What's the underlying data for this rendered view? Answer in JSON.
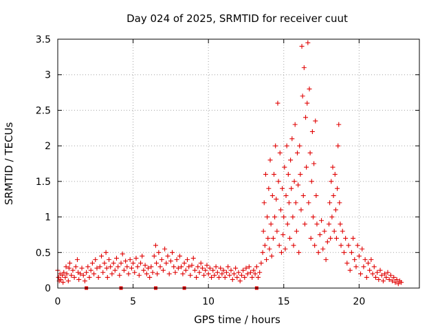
{
  "chart_data": {
    "type": "scatter",
    "title": "Day 024 of 2025, SRMTID for receiver cuut",
    "xlabel": "GPS time / hours",
    "ylabel": "SRMTID / TECUs",
    "xlim": [
      0,
      24
    ],
    "ylim": [
      0,
      3.5
    ],
    "xticks": [
      0,
      5,
      10,
      15,
      20
    ],
    "xtick_labels": [
      "0",
      "5",
      "10",
      "15",
      "20"
    ],
    "yticks": [
      0,
      0.5,
      1,
      1.5,
      2,
      2.5,
      3,
      3.5
    ],
    "ytick_labels": [
      "0",
      "0.5",
      "1",
      "1.5",
      "2",
      "2.5",
      "3",
      "3.5"
    ],
    "grid": true,
    "marker": "+",
    "color": "#e00000",
    "series": [
      {
        "name": "SRMTID",
        "points": [
          [
            0.0,
            0.25
          ],
          [
            0.05,
            0.15
          ],
          [
            0.1,
            0.1
          ],
          [
            0.15,
            0.2
          ],
          [
            0.2,
            0.12
          ],
          [
            0.3,
            0.18
          ],
          [
            0.35,
            0.08
          ],
          [
            0.4,
            0.22
          ],
          [
            0.5,
            0.15
          ],
          [
            0.55,
            0.3
          ],
          [
            0.6,
            0.2
          ],
          [
            0.7,
            0.1
          ],
          [
            0.75,
            0.28
          ],
          [
            0.8,
            0.35
          ],
          [
            0.9,
            0.18
          ],
          [
            1.0,
            0.25
          ],
          [
            1.1,
            0.15
          ],
          [
            1.2,
            0.3
          ],
          [
            1.3,
            0.4
          ],
          [
            1.35,
            0.22
          ],
          [
            1.4,
            0.12
          ],
          [
            1.5,
            0.2
          ],
          [
            1.6,
            0.28
          ],
          [
            1.7,
            0.18
          ],
          [
            1.8,
            0.1
          ],
          [
            1.9,
            0.22
          ],
          [
            2.0,
            0.3
          ],
          [
            2.1,
            0.15
          ],
          [
            2.2,
            0.25
          ],
          [
            2.3,
            0.35
          ],
          [
            2.4,
            0.2
          ],
          [
            2.5,
            0.4
          ],
          [
            2.6,
            0.28
          ],
          [
            2.7,
            0.15
          ],
          [
            2.8,
            0.3
          ],
          [
            2.9,
            0.45
          ],
          [
            3.0,
            0.22
          ],
          [
            3.1,
            0.35
          ],
          [
            3.2,
            0.5
          ],
          [
            3.25,
            0.28
          ],
          [
            3.3,
            0.15
          ],
          [
            3.4,
            0.4
          ],
          [
            3.5,
            0.3
          ],
          [
            3.6,
            0.2
          ],
          [
            3.7,
            0.35
          ],
          [
            3.8,
            0.25
          ],
          [
            3.9,
            0.42
          ],
          [
            4.0,
            0.3
          ],
          [
            4.1,
            0.18
          ],
          [
            4.2,
            0.35
          ],
          [
            4.3,
            0.48
          ],
          [
            4.4,
            0.25
          ],
          [
            4.5,
            0.38
          ],
          [
            4.6,
            0.3
          ],
          [
            4.7,
            0.2
          ],
          [
            4.8,
            0.4
          ],
          [
            4.9,
            0.28
          ],
          [
            5.0,
            0.35
          ],
          [
            5.1,
            0.22
          ],
          [
            5.2,
            0.42
          ],
          [
            5.3,
            0.3
          ],
          [
            5.4,
            0.18
          ],
          [
            5.5,
            0.35
          ],
          [
            5.6,
            0.45
          ],
          [
            5.7,
            0.25
          ],
          [
            5.8,
            0.32
          ],
          [
            5.9,
            0.2
          ],
          [
            6.0,
            0.28
          ],
          [
            6.1,
            0.15
          ],
          [
            6.2,
            0.3
          ],
          [
            6.3,
            0.22
          ],
          [
            6.4,
            0.45
          ],
          [
            6.5,
            0.6
          ],
          [
            6.55,
            0.35
          ],
          [
            6.6,
            0.2
          ],
          [
            6.7,
            0.5
          ],
          [
            6.8,
            0.3
          ],
          [
            6.9,
            0.4
          ],
          [
            7.0,
            0.25
          ],
          [
            7.1,
            0.55
          ],
          [
            7.2,
            0.35
          ],
          [
            7.3,
            0.45
          ],
          [
            7.4,
            0.2
          ],
          [
            7.5,
            0.38
          ],
          [
            7.6,
            0.5
          ],
          [
            7.7,
            0.3
          ],
          [
            7.8,
            0.22
          ],
          [
            7.9,
            0.4
          ],
          [
            8.0,
            0.28
          ],
          [
            8.1,
            0.45
          ],
          [
            8.2,
            0.3
          ],
          [
            8.3,
            0.2
          ],
          [
            8.4,
            0.35
          ],
          [
            8.5,
            0.25
          ],
          [
            8.6,
            0.4
          ],
          [
            8.7,
            0.3
          ],
          [
            8.8,
            0.18
          ],
          [
            8.9,
            0.32
          ],
          [
            9.0,
            0.42
          ],
          [
            9.1,
            0.25
          ],
          [
            9.2,
            0.15
          ],
          [
            9.3,
            0.3
          ],
          [
            9.4,
            0.22
          ],
          [
            9.5,
            0.35
          ],
          [
            9.6,
            0.28
          ],
          [
            9.7,
            0.18
          ],
          [
            9.8,
            0.25
          ],
          [
            9.9,
            0.32
          ],
          [
            10.0,
            0.2
          ],
          [
            10.1,
            0.28
          ],
          [
            10.2,
            0.15
          ],
          [
            10.3,
            0.25
          ],
          [
            10.4,
            0.18
          ],
          [
            10.5,
            0.3
          ],
          [
            10.6,
            0.22
          ],
          [
            10.7,
            0.15
          ],
          [
            10.8,
            0.28
          ],
          [
            10.9,
            0.2
          ],
          [
            11.0,
            0.25
          ],
          [
            11.1,
            0.15
          ],
          [
            11.2,
            0.22
          ],
          [
            11.3,
            0.3
          ],
          [
            11.4,
            0.18
          ],
          [
            11.5,
            0.25
          ],
          [
            11.6,
            0.12
          ],
          [
            11.7,
            0.2
          ],
          [
            11.8,
            0.28
          ],
          [
            11.9,
            0.15
          ],
          [
            12.0,
            0.22
          ],
          [
            12.1,
            0.1
          ],
          [
            12.2,
            0.18
          ],
          [
            12.3,
            0.25
          ],
          [
            12.4,
            0.15
          ],
          [
            12.5,
            0.28
          ],
          [
            12.6,
            0.2
          ],
          [
            12.7,
            0.3
          ],
          [
            12.8,
            0.22
          ],
          [
            12.9,
            0.15
          ],
          [
            13.0,
            0.25
          ],
          [
            13.1,
            0.2
          ],
          [
            13.2,
            0.3
          ],
          [
            13.3,
            0.15
          ],
          [
            13.4,
            0.22
          ],
          [
            13.5,
            0.35
          ],
          [
            13.6,
            0.5
          ],
          [
            13.65,
            0.8
          ],
          [
            13.7,
            1.2
          ],
          [
            13.75,
            0.6
          ],
          [
            13.8,
            1.6
          ],
          [
            13.85,
            0.4
          ],
          [
            13.9,
            1.0
          ],
          [
            13.95,
            0.7
          ],
          [
            14.0,
            1.4
          ],
          [
            14.05,
            0.55
          ],
          [
            14.1,
            1.8
          ],
          [
            14.15,
            0.9
          ],
          [
            14.2,
            0.45
          ],
          [
            14.25,
            1.3
          ],
          [
            14.3,
            0.7
          ],
          [
            14.35,
            1.6
          ],
          [
            14.4,
            1.0
          ],
          [
            14.45,
            2.0
          ],
          [
            14.5,
            1.25
          ],
          [
            14.55,
            0.8
          ],
          [
            14.6,
            2.6
          ],
          [
            14.65,
            1.5
          ],
          [
            14.7,
            0.6
          ],
          [
            14.75,
            1.9
          ],
          [
            14.8,
            1.1
          ],
          [
            14.85,
            0.5
          ],
          [
            14.9,
            1.4
          ],
          [
            14.95,
            0.75
          ],
          [
            15.0,
            1.0
          ],
          [
            15.05,
            1.7
          ],
          [
            15.1,
            0.55
          ],
          [
            15.15,
            1.3
          ],
          [
            15.2,
            2.0
          ],
          [
            15.25,
            0.9
          ],
          [
            15.3,
            1.6
          ],
          [
            15.35,
            1.2
          ],
          [
            15.4,
            0.7
          ],
          [
            15.45,
            1.8
          ],
          [
            15.5,
            1.4
          ],
          [
            15.55,
            2.1
          ],
          [
            15.6,
            1.0
          ],
          [
            15.65,
            0.6
          ],
          [
            15.7,
            1.5
          ],
          [
            15.75,
            2.3
          ],
          [
            15.8,
            1.2
          ],
          [
            15.85,
            0.8
          ],
          [
            15.9,
            1.9
          ],
          [
            15.95,
            1.45
          ],
          [
            16.0,
            0.5
          ],
          [
            16.05,
            2.0
          ],
          [
            16.1,
            1.6
          ],
          [
            16.15,
            1.1
          ],
          [
            16.2,
            3.4
          ],
          [
            16.25,
            2.7
          ],
          [
            16.3,
            1.3
          ],
          [
            16.35,
            3.1
          ],
          [
            16.4,
            0.9
          ],
          [
            16.45,
            2.4
          ],
          [
            16.5,
            1.7
          ],
          [
            16.55,
            2.6
          ],
          [
            16.6,
            3.45
          ],
          [
            16.65,
            1.2
          ],
          [
            16.7,
            2.8
          ],
          [
            16.75,
            1.9
          ],
          [
            16.8,
            0.7
          ],
          [
            16.85,
            1.5
          ],
          [
            16.9,
            2.2
          ],
          [
            16.95,
            1.0
          ],
          [
            17.0,
            1.75
          ],
          [
            17.05,
            0.6
          ],
          [
            17.1,
            2.35
          ],
          [
            17.15,
            1.3
          ],
          [
            17.2,
            0.9
          ],
          [
            17.3,
            0.5
          ],
          [
            17.4,
            0.75
          ],
          [
            17.5,
            0.95
          ],
          [
            17.6,
            0.55
          ],
          [
            17.7,
            0.8
          ],
          [
            17.8,
            0.4
          ],
          [
            17.9,
            0.65
          ],
          [
            18.0,
            0.9
          ],
          [
            18.05,
            1.2
          ],
          [
            18.1,
            0.7
          ],
          [
            18.15,
            1.5
          ],
          [
            18.2,
            1.0
          ],
          [
            18.25,
            1.7
          ],
          [
            18.3,
            1.3
          ],
          [
            18.35,
            0.8
          ],
          [
            18.4,
            1.6
          ],
          [
            18.45,
            1.1
          ],
          [
            18.5,
            0.7
          ],
          [
            18.55,
            1.4
          ],
          [
            18.6,
            2.0
          ],
          [
            18.65,
            2.3
          ],
          [
            18.7,
            1.2
          ],
          [
            18.75,
            0.9
          ],
          [
            18.8,
            0.6
          ],
          [
            18.9,
            0.8
          ],
          [
            19.0,
            0.5
          ],
          [
            19.1,
            0.7
          ],
          [
            19.2,
            0.35
          ],
          [
            19.3,
            0.6
          ],
          [
            19.4,
            0.25
          ],
          [
            19.5,
            0.5
          ],
          [
            19.6,
            0.7
          ],
          [
            19.7,
            0.4
          ],
          [
            19.8,
            0.3
          ],
          [
            19.9,
            0.6
          ],
          [
            20.0,
            0.45
          ],
          [
            20.1,
            0.2
          ],
          [
            20.2,
            0.55
          ],
          [
            20.3,
            0.3
          ],
          [
            20.4,
            0.4
          ],
          [
            20.5,
            0.15
          ],
          [
            20.6,
            0.35
          ],
          [
            20.7,
            0.25
          ],
          [
            20.8,
            0.4
          ],
          [
            20.9,
            0.2
          ],
          [
            21.0,
            0.3
          ],
          [
            21.1,
            0.15
          ],
          [
            21.2,
            0.22
          ],
          [
            21.3,
            0.12
          ],
          [
            21.4,
            0.25
          ],
          [
            21.5,
            0.18
          ],
          [
            21.6,
            0.1
          ],
          [
            21.7,
            0.2
          ],
          [
            21.8,
            0.15
          ],
          [
            21.9,
            0.22
          ],
          [
            22.0,
            0.12
          ],
          [
            22.1,
            0.18
          ],
          [
            22.2,
            0.1
          ],
          [
            22.3,
            0.15
          ],
          [
            22.4,
            0.08
          ],
          [
            22.5,
            0.12
          ],
          [
            22.6,
            0.06
          ],
          [
            22.7,
            0.1
          ],
          [
            22.8,
            0.08
          ]
        ]
      }
    ],
    "edge_markers_hours": [
      1.9,
      4.2,
      6.5,
      8.4,
      13.2
    ]
  }
}
